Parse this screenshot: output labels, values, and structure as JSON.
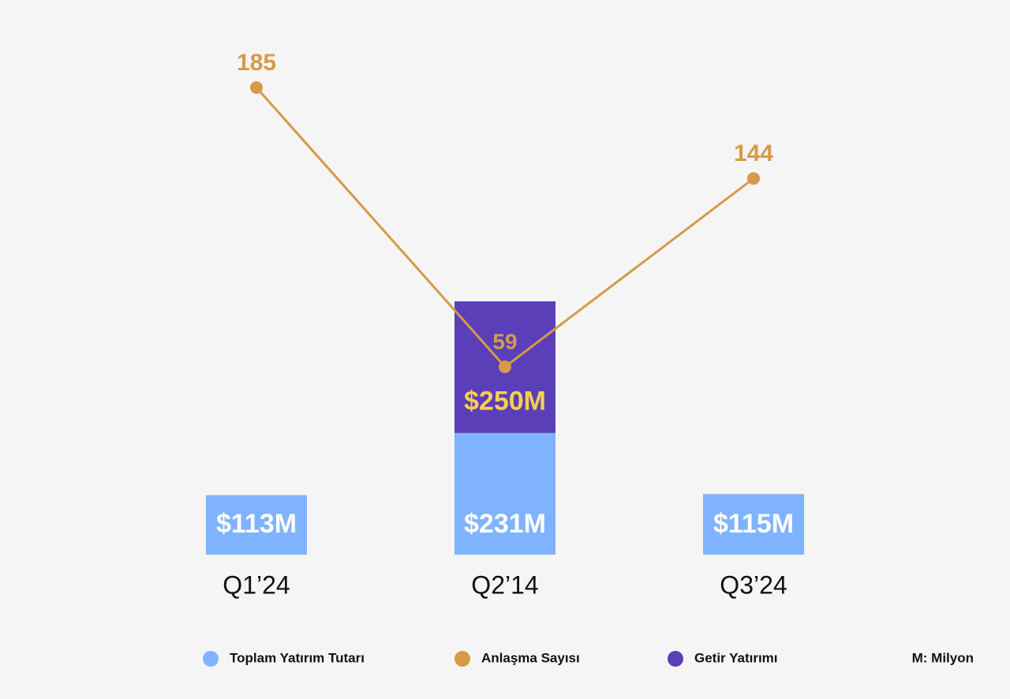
{
  "chart_data": {
    "type": "bar",
    "stacked": true,
    "categories": [
      "Q1’24",
      "Q2’14",
      "Q3’24"
    ],
    "series": [
      {
        "name": "Toplam Yatırım Tutarı",
        "color": "#80b3ff",
        "values": [
          113,
          231,
          115
        ],
        "value_labels": [
          "$113M",
          "$231M",
          "$115M"
        ],
        "label_color": "#ffffff"
      },
      {
        "name": "Anlaşma Sayısı",
        "color": "#d69a4a",
        "type": "line",
        "values": [
          185,
          59,
          144
        ]
      },
      {
        "name": "Getir Yatırımı",
        "color": "#5a3fb8",
        "values": [
          null,
          250,
          null
        ],
        "value_labels": [
          null,
          "$250M",
          null
        ],
        "label_color": "#f7cf4f"
      }
    ],
    "note": "M: Milyon"
  }
}
